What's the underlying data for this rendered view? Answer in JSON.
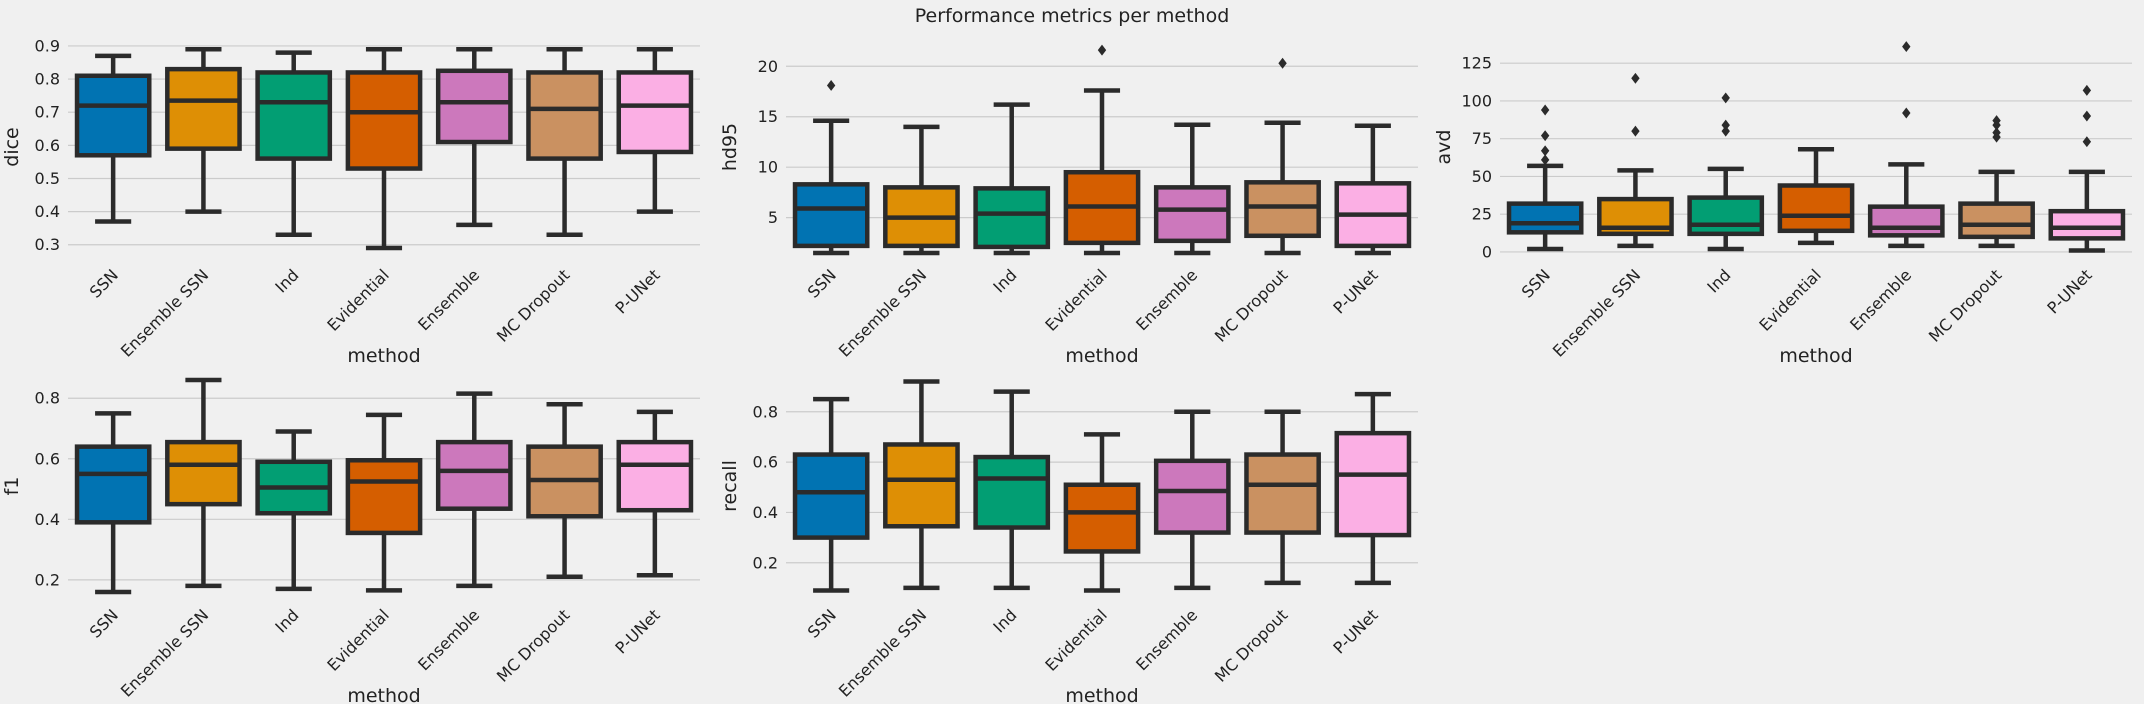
{
  "figure": {
    "title": "Performance metrics per method",
    "background": "#f0f0f0",
    "palette": [
      "#0173b2",
      "#de8f05",
      "#029e73",
      "#d55e00",
      "#cc78bc",
      "#ca9161",
      "#fbafe4"
    ],
    "line_color": "#2b2b2b"
  },
  "chart_data": [
    {
      "type": "box",
      "ylabel": "dice",
      "xlabel": "method",
      "categories": [
        "SSN",
        "Ensemble SSN",
        "Ind",
        "Evidential",
        "Ensemble",
        "MC Dropout",
        "P-UNet"
      ],
      "ylim": [
        0.26,
        0.93
      ],
      "yticks": [
        0.3,
        0.4,
        0.5,
        0.6,
        0.7,
        0.8,
        0.9
      ],
      "ytick_labels": [
        "0.3",
        "0.4",
        "0.5",
        "0.6",
        "0.7",
        "0.8",
        "0.9"
      ],
      "grid": true,
      "boxes": [
        {
          "whislo": 0.37,
          "q1": 0.57,
          "med": 0.72,
          "q3": 0.81,
          "whishi": 0.87,
          "fliers": []
        },
        {
          "whislo": 0.4,
          "q1": 0.59,
          "med": 0.735,
          "q3": 0.83,
          "whishi": 0.89,
          "fliers": []
        },
        {
          "whislo": 0.33,
          "q1": 0.56,
          "med": 0.73,
          "q3": 0.82,
          "whishi": 0.88,
          "fliers": []
        },
        {
          "whislo": 0.29,
          "q1": 0.53,
          "med": 0.7,
          "q3": 0.82,
          "whishi": 0.89,
          "fliers": []
        },
        {
          "whislo": 0.36,
          "q1": 0.61,
          "med": 0.73,
          "q3": 0.825,
          "whishi": 0.89,
          "fliers": []
        },
        {
          "whislo": 0.33,
          "q1": 0.56,
          "med": 0.71,
          "q3": 0.82,
          "whishi": 0.89,
          "fliers": []
        },
        {
          "whislo": 0.4,
          "q1": 0.58,
          "med": 0.72,
          "q3": 0.82,
          "whishi": 0.89,
          "fliers": []
        }
      ]
    },
    {
      "type": "box",
      "ylabel": "hd95",
      "xlabel": "method",
      "categories": [
        "SSN",
        "Ensemble SSN",
        "Ind",
        "Evidential",
        "Ensemble",
        "MC Dropout",
        "P-UNet"
      ],
      "ylim": [
        1.0,
        23.0
      ],
      "yticks": [
        5,
        10,
        15,
        20
      ],
      "ytick_labels": [
        "5",
        "10",
        "15",
        "20"
      ],
      "grid": true,
      "boxes": [
        {
          "whislo": 1.5,
          "q1": 2.2,
          "med": 5.9,
          "q3": 8.3,
          "whishi": 14.6,
          "fliers": [
            18.1
          ]
        },
        {
          "whislo": 1.5,
          "q1": 2.2,
          "med": 5.0,
          "q3": 8.0,
          "whishi": 14.0,
          "fliers": []
        },
        {
          "whislo": 1.5,
          "q1": 2.1,
          "med": 5.4,
          "q3": 7.9,
          "whishi": 16.2,
          "fliers": []
        },
        {
          "whislo": 1.5,
          "q1": 2.5,
          "med": 6.1,
          "q3": 9.5,
          "whishi": 17.6,
          "fliers": [
            21.6
          ]
        },
        {
          "whislo": 1.5,
          "q1": 2.7,
          "med": 5.8,
          "q3": 8.0,
          "whishi": 14.2,
          "fliers": []
        },
        {
          "whislo": 1.5,
          "q1": 3.2,
          "med": 6.1,
          "q3": 8.5,
          "whishi": 14.4,
          "fliers": [
            20.3
          ]
        },
        {
          "whislo": 1.5,
          "q1": 2.2,
          "med": 5.3,
          "q3": 8.4,
          "whishi": 14.1,
          "fliers": []
        }
      ]
    },
    {
      "type": "box",
      "ylabel": "avd",
      "xlabel": "method",
      "categories": [
        "SSN",
        "Ensemble SSN",
        "Ind",
        "Evidential",
        "Ensemble",
        "MC Dropout",
        "P-UNet"
      ],
      "ylim": [
        -4,
        143
      ],
      "yticks": [
        0,
        25,
        50,
        75,
        100,
        125
      ],
      "ytick_labels": [
        "0",
        "25",
        "50",
        "75",
        "100",
        "125"
      ],
      "grid": true,
      "boxes": [
        {
          "whislo": 2,
          "q1": 13,
          "med": 19,
          "q3": 32,
          "whishi": 57,
          "fliers": [
            61,
            67,
            77,
            94
          ]
        },
        {
          "whislo": 4,
          "q1": 12,
          "med": 16,
          "q3": 35,
          "whishi": 54,
          "fliers": [
            80,
            115
          ]
        },
        {
          "whislo": 2,
          "q1": 12,
          "med": 18,
          "q3": 36,
          "whishi": 55,
          "fliers": [
            80,
            84,
            102
          ]
        },
        {
          "whislo": 6,
          "q1": 14,
          "med": 24,
          "q3": 44,
          "whishi": 68,
          "fliers": []
        },
        {
          "whislo": 4,
          "q1": 11,
          "med": 16,
          "q3": 30,
          "whishi": 58,
          "fliers": [
            92,
            136
          ]
        },
        {
          "whislo": 4,
          "q1": 10,
          "med": 18,
          "q3": 32,
          "whishi": 53,
          "fliers": [
            76,
            79,
            84,
            87
          ]
        },
        {
          "whislo": 1,
          "q1": 9,
          "med": 16,
          "q3": 27,
          "whishi": 53,
          "fliers": [
            73,
            90,
            107
          ]
        }
      ]
    },
    {
      "type": "box",
      "ylabel": "f1",
      "xlabel": "method",
      "categories": [
        "SSN",
        "Ensemble SSN",
        "Ind",
        "Evidential",
        "Ensemble",
        "MC Dropout",
        "P-UNet"
      ],
      "ylim": [
        0.14,
        0.88
      ],
      "yticks": [
        0.2,
        0.4,
        0.6,
        0.8
      ],
      "ytick_labels": [
        "0.2",
        "0.4",
        "0.6",
        "0.8"
      ],
      "grid": true,
      "boxes": [
        {
          "whislo": 0.16,
          "q1": 0.39,
          "med": 0.55,
          "q3": 0.64,
          "whishi": 0.75,
          "fliers": []
        },
        {
          "whislo": 0.18,
          "q1": 0.45,
          "med": 0.58,
          "q3": 0.655,
          "whishi": 0.86,
          "fliers": []
        },
        {
          "whislo": 0.17,
          "q1": 0.42,
          "med": 0.505,
          "q3": 0.59,
          "whishi": 0.69,
          "fliers": []
        },
        {
          "whislo": 0.165,
          "q1": 0.355,
          "med": 0.525,
          "q3": 0.595,
          "whishi": 0.745,
          "fliers": []
        },
        {
          "whislo": 0.18,
          "q1": 0.435,
          "med": 0.56,
          "q3": 0.655,
          "whishi": 0.815,
          "fliers": []
        },
        {
          "whislo": 0.21,
          "q1": 0.41,
          "med": 0.53,
          "q3": 0.64,
          "whishi": 0.78,
          "fliers": []
        },
        {
          "whislo": 0.215,
          "q1": 0.43,
          "med": 0.58,
          "q3": 0.655,
          "whishi": 0.755,
          "fliers": []
        }
      ]
    },
    {
      "type": "box",
      "ylabel": "recall",
      "xlabel": "method",
      "categories": [
        "SSN",
        "Ensemble SSN",
        "Ind",
        "Evidential",
        "Ensemble",
        "MC Dropout",
        "P-UNet"
      ],
      "ylim": [
        0.06,
        0.95
      ],
      "yticks": [
        0.2,
        0.4,
        0.6,
        0.8
      ],
      "ytick_labels": [
        "0.2",
        "0.4",
        "0.6",
        "0.8"
      ],
      "grid": true,
      "boxes": [
        {
          "whislo": 0.09,
          "q1": 0.3,
          "med": 0.48,
          "q3": 0.63,
          "whishi": 0.85,
          "fliers": []
        },
        {
          "whislo": 0.1,
          "q1": 0.345,
          "med": 0.53,
          "q3": 0.67,
          "whishi": 0.92,
          "fliers": []
        },
        {
          "whislo": 0.1,
          "q1": 0.34,
          "med": 0.535,
          "q3": 0.62,
          "whishi": 0.88,
          "fliers": []
        },
        {
          "whislo": 0.09,
          "q1": 0.245,
          "med": 0.4,
          "q3": 0.51,
          "whishi": 0.71,
          "fliers": []
        },
        {
          "whislo": 0.1,
          "q1": 0.32,
          "med": 0.485,
          "q3": 0.605,
          "whishi": 0.8,
          "fliers": []
        },
        {
          "whislo": 0.12,
          "q1": 0.32,
          "med": 0.51,
          "q3": 0.63,
          "whishi": 0.8,
          "fliers": []
        },
        {
          "whislo": 0.12,
          "q1": 0.31,
          "med": 0.55,
          "q3": 0.715,
          "whishi": 0.87,
          "fliers": []
        }
      ]
    }
  ]
}
